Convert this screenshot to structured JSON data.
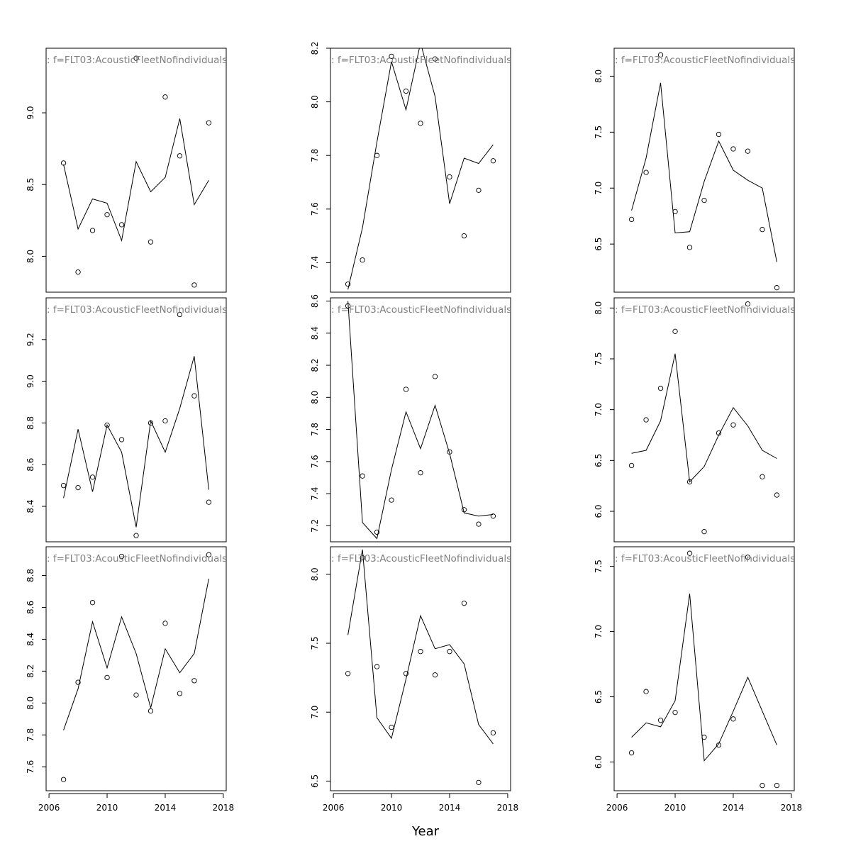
{
  "figure": {
    "xlabel": "Year",
    "panel_label": ": f=FLT03:AcousticFleetNofindividuals,",
    "x_ticks": [
      2006,
      2010,
      2014,
      2018
    ]
  },
  "chart_data": [
    {
      "type": "scatter",
      "title": ": f=FLT03:AcousticFleetNofindividuals,",
      "ylim": [
        7.75,
        9.45
      ],
      "y_ticks": [
        8.0,
        8.5,
        9.0
      ],
      "x": [
        2007,
        2008,
        2009,
        2010,
        2011,
        2012,
        2013,
        2014,
        2015,
        2016,
        2017
      ],
      "observed": [
        8.65,
        7.89,
        8.18,
        8.29,
        8.22,
        9.38,
        8.1,
        9.11,
        8.7,
        7.8,
        8.93
      ],
      "fitted": [
        8.64,
        8.19,
        8.4,
        8.37,
        8.11,
        8.66,
        8.45,
        8.55,
        8.96,
        8.36,
        8.53
      ]
    },
    {
      "type": "scatter",
      "title": ": f=FLT03:AcousticFleetNofindividuals,",
      "ylim": [
        7.29,
        8.2
      ],
      "y_ticks": [
        7.4,
        7.6,
        7.8,
        8.0,
        8.2
      ],
      "x": [
        2007,
        2008,
        2009,
        2010,
        2011,
        2012,
        2013,
        2014,
        2015,
        2016,
        2017
      ],
      "observed": [
        7.32,
        7.41,
        7.8,
        8.17,
        8.04,
        7.92,
        8.16,
        7.72,
        7.5,
        7.67,
        7.78
      ],
      "fitted": [
        7.3,
        7.53,
        7.85,
        8.15,
        7.97,
        8.22,
        8.02,
        7.62,
        7.79,
        7.77,
        7.84
      ]
    },
    {
      "type": "scatter",
      "title": ": f=FLT03:AcousticFleetNofindividuals,",
      "ylim": [
        6.07,
        8.25
      ],
      "y_ticks": [
        6.5,
        7.0,
        7.5,
        8.0
      ],
      "x": [
        2007,
        2008,
        2009,
        2010,
        2011,
        2012,
        2013,
        2014,
        2015,
        2016,
        2017
      ],
      "observed": [
        6.72,
        7.14,
        8.19,
        6.79,
        6.47,
        6.89,
        7.48,
        7.35,
        7.33,
        6.63,
        6.11
      ],
      "fitted": [
        6.8,
        7.27,
        7.94,
        6.6,
        6.61,
        7.06,
        7.42,
        7.16,
        7.07,
        7.0,
        6.34
      ]
    },
    {
      "type": "scatter",
      "title": ": f=FLT03:AcousticFleetNofindividuals,",
      "ylim": [
        8.23,
        9.4
      ],
      "y_ticks": [
        8.4,
        8.6,
        8.8,
        9.0,
        9.2
      ],
      "x": [
        2007,
        2008,
        2009,
        2010,
        2011,
        2012,
        2013,
        2014,
        2015,
        2016,
        2017
      ],
      "observed": [
        8.5,
        8.49,
        8.54,
        8.79,
        8.72,
        8.26,
        8.8,
        8.81,
        9.32,
        8.93,
        8.42
      ],
      "fitted": [
        8.44,
        8.77,
        8.47,
        8.79,
        8.66,
        8.3,
        8.81,
        8.66,
        8.87,
        9.12,
        8.48
      ]
    },
    {
      "type": "scatter",
      "title": ": f=FLT03:AcousticFleetNofindividuals,",
      "ylim": [
        7.1,
        8.62
      ],
      "y_ticks": [
        7.2,
        7.4,
        7.6,
        7.8,
        8.0,
        8.2,
        8.4,
        8.6
      ],
      "x": [
        2007,
        2008,
        2009,
        2010,
        2011,
        2012,
        2013,
        2014,
        2015,
        2016,
        2017
      ],
      "observed": [
        8.57,
        7.51,
        7.16,
        7.36,
        8.05,
        7.53,
        8.13,
        7.66,
        7.3,
        7.21,
        7.26
      ],
      "fitted": [
        8.6,
        7.22,
        7.12,
        7.55,
        7.91,
        7.68,
        7.95,
        7.65,
        7.28,
        7.26,
        7.27
      ]
    },
    {
      "type": "scatter",
      "title": ": f=FLT03:AcousticFleetNofindividuals,",
      "ylim": [
        5.7,
        8.1
      ],
      "y_ticks": [
        6.0,
        6.5,
        7.0,
        7.5,
        8.0
      ],
      "x": [
        2007,
        2008,
        2009,
        2010,
        2011,
        2012,
        2013,
        2014,
        2015,
        2016,
        2017
      ],
      "observed": [
        6.45,
        6.9,
        7.21,
        7.77,
        6.29,
        5.8,
        6.77,
        6.85,
        8.04,
        6.34,
        6.16
      ],
      "fitted": [
        6.57,
        6.6,
        6.89,
        7.55,
        6.29,
        6.44,
        6.75,
        7.02,
        6.84,
        6.6,
        6.52
      ]
    },
    {
      "type": "scatter",
      "title": ": f=FLT03:AcousticFleetNofindividuals,",
      "ylim": [
        7.45,
        8.98
      ],
      "y_ticks": [
        7.6,
        7.8,
        8.0,
        8.2,
        8.4,
        8.6,
        8.8
      ],
      "x": [
        2007,
        2008,
        2009,
        2010,
        2011,
        2012,
        2013,
        2014,
        2015,
        2016,
        2017
      ],
      "observed": [
        7.52,
        8.13,
        8.63,
        8.16,
        8.92,
        8.05,
        7.95,
        8.5,
        8.06,
        8.14,
        8.93
      ],
      "fitted": [
        7.83,
        8.09,
        8.51,
        8.22,
        8.54,
        8.31,
        7.97,
        8.34,
        8.19,
        8.31,
        8.78
      ]
    },
    {
      "type": "scatter",
      "title": ": f=FLT03:AcousticFleetNofindividuals,",
      "ylim": [
        6.43,
        8.2
      ],
      "y_ticks": [
        6.5,
        7.0,
        7.5,
        8.0
      ],
      "x": [
        2007,
        2008,
        2009,
        2010,
        2011,
        2012,
        2013,
        2014,
        2015,
        2016,
        2017
      ],
      "observed": [
        7.28,
        8.12,
        7.33,
        6.89,
        7.28,
        7.44,
        7.27,
        7.44,
        7.79,
        6.49,
        6.85
      ],
      "fitted": [
        7.56,
        8.18,
        6.96,
        6.81,
        7.24,
        7.7,
        7.46,
        7.49,
        7.35,
        6.91,
        6.77
      ]
    },
    {
      "type": "scatter",
      "title": ": f=FLT03:AcousticFleetNofindividuals,",
      "ylim": [
        5.78,
        7.65
      ],
      "y_ticks": [
        6.0,
        6.5,
        7.0,
        7.5
      ],
      "x": [
        2007,
        2008,
        2009,
        2010,
        2011,
        2012,
        2013,
        2014,
        2015,
        2016,
        2017
      ],
      "observed": [
        6.07,
        6.54,
        6.32,
        6.38,
        7.6,
        6.19,
        6.13,
        6.33,
        7.57,
        5.82,
        5.82
      ],
      "fitted": [
        6.19,
        6.3,
        6.27,
        6.47,
        7.29,
        6.01,
        6.14,
        6.39,
        6.65,
        6.39,
        6.13
      ]
    }
  ]
}
